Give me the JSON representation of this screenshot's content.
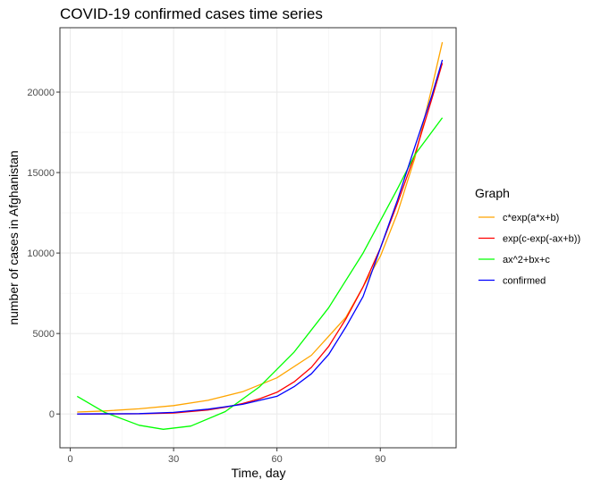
{
  "chart_data": {
    "type": "line",
    "title": "COVID-19 confirmed cases time series",
    "xlabel": "Time, day",
    "ylabel": "number of cases in  Afghanistan",
    "xlim": [
      -3,
      112
    ],
    "ylim": [
      -2100,
      24000
    ],
    "x_ticks": [
      0,
      30,
      60,
      90
    ],
    "y_ticks": [
      0,
      5000,
      10000,
      15000,
      20000
    ],
    "x_tick_labels": [
      "0",
      "30",
      "60",
      "90"
    ],
    "y_tick_labels": [
      "0",
      "5000",
      "10000",
      "15000",
      "20000"
    ],
    "grid": true,
    "legend": {
      "title": "Graph",
      "position": "right"
    },
    "series": [
      {
        "name": "c*exp(a*x+b)",
        "color": "#FFA500",
        "x": [
          2,
          10,
          20,
          30,
          40,
          50,
          60,
          70,
          80,
          90,
          95,
          100,
          105,
          108
        ],
        "y": [
          120,
          190,
          320,
          520,
          850,
          1380,
          2250,
          3650,
          6000,
          9800,
          12500,
          15900,
          20300,
          23100
        ]
      },
      {
        "name": "exp(c-exp(-ax+b))",
        "color": "#FF0000",
        "x": [
          2,
          20,
          30,
          40,
          45,
          50,
          55,
          60,
          65,
          70,
          75,
          80,
          85,
          90,
          95,
          100,
          105,
          108
        ],
        "y": [
          0,
          10,
          60,
          250,
          420,
          650,
          950,
          1350,
          2000,
          2900,
          4200,
          5900,
          7900,
          10300,
          13100,
          16100,
          19600,
          21800
        ]
      },
      {
        "name": "ax^2+bx+c",
        "color": "#00FF00",
        "x": [
          2,
          10,
          20,
          27,
          35,
          45,
          55,
          65,
          75,
          85,
          95,
          100,
          108
        ],
        "y": [
          1100,
          100,
          -700,
          -950,
          -750,
          150,
          1700,
          3850,
          6600,
          10000,
          14000,
          16100,
          18400
        ]
      },
      {
        "name": "confirmed",
        "color": "#0000FF",
        "x": [
          2,
          20,
          30,
          40,
          45,
          50,
          55,
          60,
          65,
          70,
          75,
          80,
          85,
          90,
          95,
          100,
          105,
          108
        ],
        "y": [
          0,
          20,
          100,
          300,
          450,
          600,
          850,
          1100,
          1700,
          2500,
          3700,
          5400,
          7300,
          10300,
          13300,
          16600,
          19800,
          22000
        ]
      }
    ]
  }
}
